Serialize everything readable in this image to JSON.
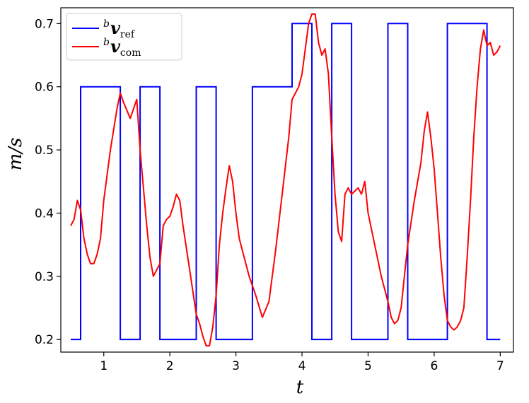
{
  "chart_data": {
    "type": "line",
    "title": "",
    "xlabel": "t",
    "ylabel": "m/s",
    "xlim": [
      0.35,
      7.2
    ],
    "ylim": [
      0.18,
      0.725
    ],
    "xticks": [
      1,
      2,
      3,
      4,
      5,
      6,
      7
    ],
    "yticks": [
      0.2,
      0.3,
      0.4,
      0.5,
      0.6,
      0.7
    ],
    "xtick_labels": [
      "1",
      "2",
      "3",
      "4",
      "5",
      "6",
      "7"
    ],
    "ytick_labels": [
      "0.2",
      "0.3",
      "0.4",
      "0.5",
      "0.6",
      "0.7"
    ],
    "grid": false,
    "legend": {
      "position": "top-left",
      "entries": [
        {
          "sup": "b",
          "symbol": "v",
          "sub": "ref",
          "color": "#0000ff"
        },
        {
          "sup": "b",
          "symbol": "v",
          "sub": "com",
          "color": "#ff0000"
        }
      ]
    },
    "series": [
      {
        "key": "ref",
        "color": "#0000ff",
        "step": true,
        "x": [
          0.5,
          0.65,
          0.65,
          1.25,
          1.25,
          1.55,
          1.55,
          1.85,
          1.85,
          2.4,
          2.4,
          2.7,
          2.7,
          3.25,
          3.25,
          3.85,
          3.85,
          4.15,
          4.15,
          4.45,
          4.45,
          4.75,
          4.75,
          5.3,
          5.3,
          5.6,
          5.6,
          6.2,
          6.2,
          6.8,
          6.8,
          7.0
        ],
        "y": [
          0.2,
          0.2,
          0.6,
          0.6,
          0.2,
          0.2,
          0.6,
          0.6,
          0.2,
          0.2,
          0.6,
          0.6,
          0.2,
          0.2,
          0.6,
          0.6,
          0.7,
          0.7,
          0.2,
          0.2,
          0.7,
          0.7,
          0.2,
          0.2,
          0.7,
          0.7,
          0.2,
          0.2,
          0.7,
          0.7,
          0.2,
          0.2
        ]
      },
      {
        "key": "com",
        "color": "#ff0000",
        "step": false,
        "x": [
          0.5,
          0.55,
          0.6,
          0.65,
          0.7,
          0.75,
          0.8,
          0.85,
          0.9,
          0.95,
          1.0,
          1.1,
          1.2,
          1.25,
          1.3,
          1.4,
          1.45,
          1.5,
          1.55,
          1.6,
          1.65,
          1.7,
          1.75,
          1.8,
          1.85,
          1.9,
          1.95,
          2.0,
          2.05,
          2.1,
          2.15,
          2.2,
          2.3,
          2.4,
          2.45,
          2.5,
          2.55,
          2.6,
          2.65,
          2.7,
          2.75,
          2.8,
          2.85,
          2.9,
          2.95,
          3.0,
          3.05,
          3.1,
          3.2,
          3.3,
          3.4,
          3.5,
          3.6,
          3.7,
          3.8,
          3.85,
          3.9,
          3.95,
          4.0,
          4.05,
          4.1,
          4.15,
          4.2,
          4.25,
          4.3,
          4.35,
          4.4,
          4.45,
          4.5,
          4.55,
          4.6,
          4.65,
          4.7,
          4.75,
          4.8,
          4.85,
          4.9,
          4.95,
          5.0,
          5.1,
          5.2,
          5.3,
          5.35,
          5.4,
          5.45,
          5.5,
          5.55,
          5.6,
          5.7,
          5.8,
          5.85,
          5.9,
          5.95,
          6.0,
          6.05,
          6.1,
          6.15,
          6.2,
          6.25,
          6.3,
          6.35,
          6.4,
          6.45,
          6.5,
          6.55,
          6.6,
          6.65,
          6.7,
          6.75,
          6.8,
          6.85,
          6.9,
          6.95,
          7.0
        ],
        "y": [
          0.38,
          0.39,
          0.42,
          0.405,
          0.36,
          0.335,
          0.32,
          0.32,
          0.335,
          0.36,
          0.42,
          0.5,
          0.565,
          0.59,
          0.575,
          0.55,
          0.565,
          0.58,
          0.5,
          0.44,
          0.38,
          0.33,
          0.3,
          0.31,
          0.32,
          0.38,
          0.39,
          0.395,
          0.41,
          0.43,
          0.42,
          0.38,
          0.31,
          0.24,
          0.225,
          0.205,
          0.19,
          0.19,
          0.22,
          0.27,
          0.35,
          0.4,
          0.44,
          0.475,
          0.45,
          0.4,
          0.36,
          0.34,
          0.3,
          0.27,
          0.235,
          0.26,
          0.34,
          0.43,
          0.52,
          0.58,
          0.59,
          0.6,
          0.62,
          0.66,
          0.7,
          0.715,
          0.715,
          0.67,
          0.65,
          0.66,
          0.62,
          0.52,
          0.43,
          0.37,
          0.355,
          0.43,
          0.44,
          0.43,
          0.435,
          0.44,
          0.43,
          0.45,
          0.4,
          0.35,
          0.3,
          0.26,
          0.235,
          0.225,
          0.23,
          0.25,
          0.3,
          0.35,
          0.42,
          0.48,
          0.53,
          0.56,
          0.52,
          0.47,
          0.4,
          0.33,
          0.27,
          0.23,
          0.22,
          0.215,
          0.22,
          0.23,
          0.25,
          0.33,
          0.42,
          0.52,
          0.6,
          0.66,
          0.69,
          0.665,
          0.67,
          0.65,
          0.655,
          0.665
        ]
      }
    ]
  }
}
